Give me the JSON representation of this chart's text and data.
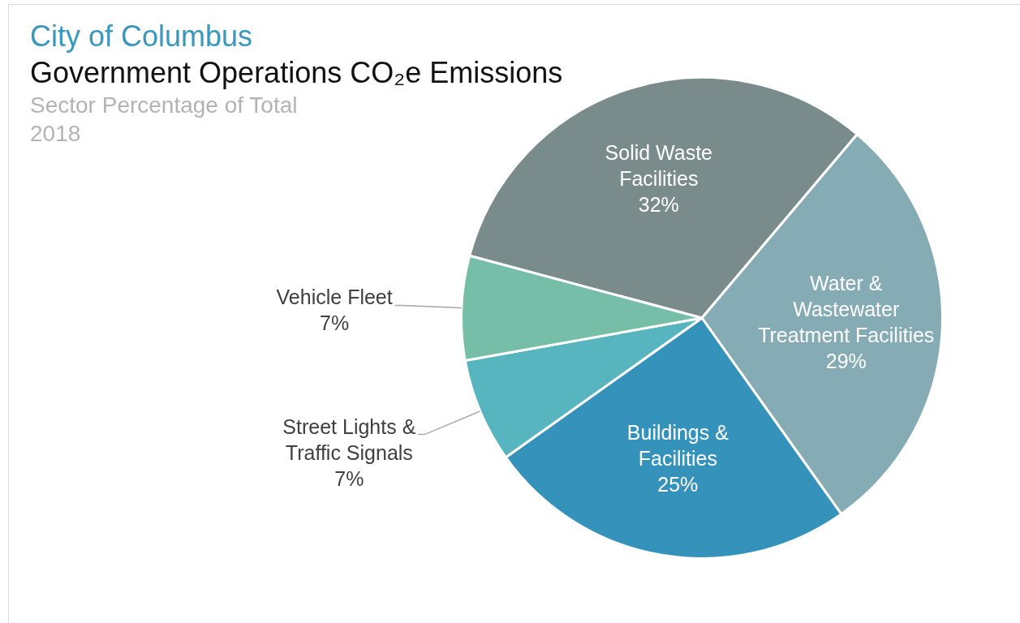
{
  "chart_data": {
    "type": "pie",
    "title": "City of Columbus\nGovernment Operations CO₂e Emissions",
    "subtitle": "Sector Percentage of Total\n2018",
    "categories": [
      "Solid Waste\nFacilities",
      "Water &\nWastewater\nTreatment Facilities",
      "Buildings &\nFacilities",
      "Street Lights &\nTraffic Signals",
      "Vehicle Fleet"
    ],
    "values": [
      32,
      29,
      25,
      7,
      7
    ],
    "value_labels": [
      "32%",
      "29%",
      "25%",
      "7%",
      "7%"
    ],
    "colors": [
      "#7a8b8c",
      "#85abb5",
      "#3592bb",
      "#57b5c0",
      "#76bea7"
    ]
  }
}
